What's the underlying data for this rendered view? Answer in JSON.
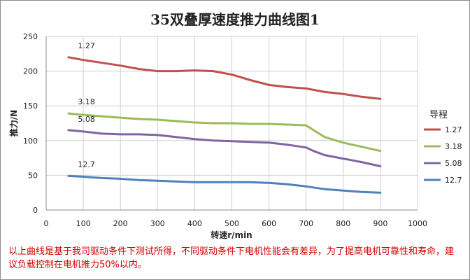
{
  "chart_data": {
    "type": "line",
    "title": "35双叠厚速度推力曲线图1",
    "xlabel": "转速r/min",
    "ylabel": "推力/N",
    "xlim": [
      0,
      1000
    ],
    "ylim": [
      0,
      250
    ],
    "x_ticks": [
      "0",
      "100",
      "200",
      "300",
      "400",
      "500",
      "600",
      "700",
      "800",
      "900",
      "1000"
    ],
    "y_ticks": [
      "0",
      "50",
      "100",
      "150",
      "200",
      "250"
    ],
    "grid": true,
    "legend_title": "导程",
    "legend_position": "right",
    "series": [
      {
        "name": "1.27",
        "color": "#c0504d",
        "points": [
          [
            60,
            220
          ],
          [
            100,
            216
          ],
          [
            150,
            212
          ],
          [
            200,
            208
          ],
          [
            250,
            203
          ],
          [
            300,
            200
          ],
          [
            350,
            200
          ],
          [
            400,
            201
          ],
          [
            450,
            200
          ],
          [
            500,
            195
          ],
          [
            550,
            187
          ],
          [
            600,
            180
          ],
          [
            650,
            177
          ],
          [
            700,
            175
          ],
          [
            750,
            170
          ],
          [
            800,
            167
          ],
          [
            850,
            163
          ],
          [
            900,
            160
          ]
        ]
      },
      {
        "name": "3.18",
        "color": "#9bbb59",
        "points": [
          [
            60,
            139
          ],
          [
            100,
            137
          ],
          [
            150,
            135
          ],
          [
            200,
            133
          ],
          [
            250,
            131
          ],
          [
            300,
            130
          ],
          [
            350,
            128
          ],
          [
            400,
            126
          ],
          [
            450,
            125
          ],
          [
            500,
            125
          ],
          [
            550,
            124
          ],
          [
            600,
            124
          ],
          [
            650,
            123
          ],
          [
            700,
            122
          ],
          [
            720,
            115
          ],
          [
            750,
            105
          ],
          [
            800,
            97
          ],
          [
            850,
            91
          ],
          [
            900,
            85
          ]
        ]
      },
      {
        "name": "5.08",
        "color": "#8064a2",
        "points": [
          [
            60,
            115
          ],
          [
            100,
            113
          ],
          [
            150,
            110
          ],
          [
            200,
            109
          ],
          [
            250,
            109
          ],
          [
            300,
            108
          ],
          [
            350,
            105
          ],
          [
            400,
            102
          ],
          [
            450,
            100
          ],
          [
            500,
            99
          ],
          [
            550,
            98
          ],
          [
            600,
            97
          ],
          [
            650,
            94
          ],
          [
            700,
            90
          ],
          [
            720,
            85
          ],
          [
            750,
            79
          ],
          [
            800,
            74
          ],
          [
            850,
            69
          ],
          [
            900,
            63
          ]
        ]
      },
      {
        "name": "12.7",
        "color": "#4f81bd",
        "points": [
          [
            60,
            49
          ],
          [
            100,
            48
          ],
          [
            150,
            46
          ],
          [
            200,
            45
          ],
          [
            250,
            43
          ],
          [
            300,
            42
          ],
          [
            350,
            41
          ],
          [
            400,
            40
          ],
          [
            450,
            40
          ],
          [
            500,
            40
          ],
          [
            550,
            40
          ],
          [
            600,
            39
          ],
          [
            650,
            37
          ],
          [
            700,
            34
          ],
          [
            750,
            30
          ],
          [
            800,
            28
          ],
          [
            850,
            26
          ],
          [
            900,
            25
          ]
        ]
      }
    ],
    "annotations": [
      {
        "text": "1.27",
        "x": 60,
        "y": 237
      },
      {
        "text": "3.18",
        "x": 60,
        "y": 156
      },
      {
        "text": "5.08",
        "x": 60,
        "y": 131
      },
      {
        "text": "12.7",
        "x": 60,
        "y": 66
      }
    ]
  },
  "note": "以上曲线是基于我司驱动条件下测试所得，不同驱动条件下电机性能会有差异，为了提高电机可靠性和寿命，建议负载控制在电机推力50%以内。"
}
